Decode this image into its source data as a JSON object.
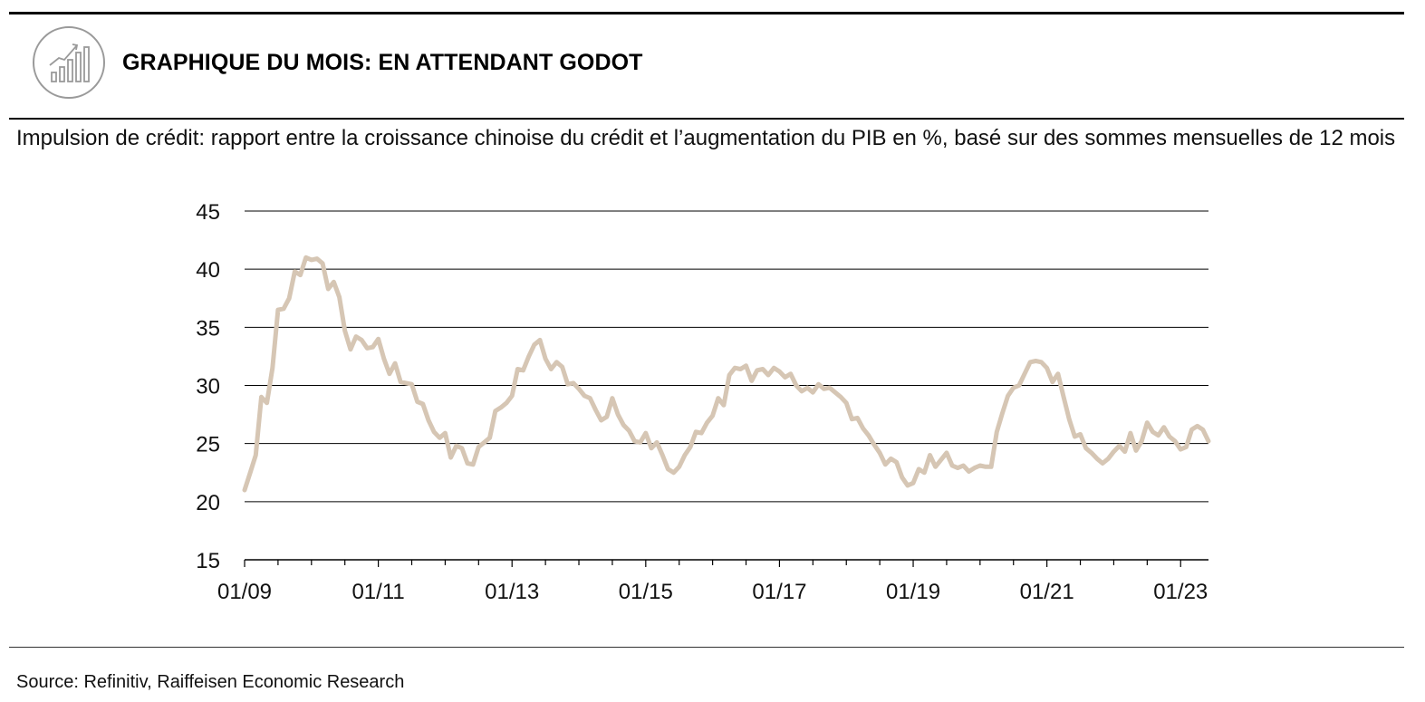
{
  "header": {
    "title": "GRAPHIQUE DU MOIS: EN ATTENDANT GODOT",
    "icon": "bar-chart-growth-icon"
  },
  "subtitle": "Impulsion de crédit: rapport entre la croissance chinoise du crédit et l’augmentation du PIB en %, basé sur des sommes mensuelles de 12 mois",
  "source": "Source: Refinitiv, Raiffeisen Economic Research",
  "colors": {
    "line": "#d6c6b4",
    "grid": "#000000",
    "icon": "#9a9a9a"
  },
  "chart_data": {
    "type": "line",
    "title": "",
    "xlabel": "",
    "ylabel": "",
    "ylim": [
      15,
      45
    ],
    "yticks": [
      15,
      20,
      25,
      30,
      35,
      40,
      45
    ],
    "xlim": [
      "01/09",
      "06/23"
    ],
    "xticks": [
      "01/09",
      "01/11",
      "01/13",
      "01/15",
      "01/17",
      "01/19",
      "01/21",
      "01/23"
    ],
    "grid": true,
    "legend": "none",
    "series": [
      {
        "name": "",
        "points": [
          [
            "01/09",
            21.0
          ],
          [
            "02/09",
            22.5
          ],
          [
            "03/09",
            24.0
          ],
          [
            "04/09",
            29.0
          ],
          [
            "05/09",
            28.5
          ],
          [
            "06/09",
            31.5
          ],
          [
            "07/09",
            36.5
          ],
          [
            "08/09",
            36.6
          ],
          [
            "09/09",
            37.5
          ],
          [
            "10/09",
            39.8
          ],
          [
            "11/09",
            39.5
          ],
          [
            "12/09",
            41.0
          ],
          [
            "01/10",
            40.8
          ],
          [
            "02/10",
            40.9
          ],
          [
            "03/10",
            40.5
          ],
          [
            "04/10",
            38.3
          ],
          [
            "05/10",
            38.9
          ],
          [
            "06/10",
            37.6
          ],
          [
            "07/10",
            34.7
          ],
          [
            "08/10",
            33.1
          ],
          [
            "09/10",
            34.2
          ],
          [
            "10/10",
            33.9
          ],
          [
            "11/10",
            33.2
          ],
          [
            "12/10",
            33.3
          ],
          [
            "01/11",
            34.0
          ],
          [
            "02/11",
            32.3
          ],
          [
            "03/11",
            31.0
          ],
          [
            "04/11",
            31.9
          ],
          [
            "05/11",
            30.3
          ],
          [
            "06/11",
            30.2
          ],
          [
            "07/11",
            30.1
          ],
          [
            "08/11",
            28.6
          ],
          [
            "09/11",
            28.4
          ],
          [
            "10/11",
            27.0
          ],
          [
            "11/11",
            26.0
          ],
          [
            "12/11",
            25.5
          ],
          [
            "01/12",
            25.9
          ],
          [
            "02/12",
            23.8
          ],
          [
            "03/12",
            24.8
          ],
          [
            "04/12",
            24.6
          ],
          [
            "05/12",
            23.3
          ],
          [
            "06/12",
            23.2
          ],
          [
            "07/12",
            24.7
          ],
          [
            "08/12",
            25.1
          ],
          [
            "09/12",
            25.5
          ],
          [
            "10/12",
            27.8
          ],
          [
            "11/12",
            28.1
          ],
          [
            "12/12",
            28.5
          ],
          [
            "01/13",
            29.1
          ],
          [
            "02/13",
            31.4
          ],
          [
            "03/13",
            31.3
          ],
          [
            "04/13",
            32.5
          ],
          [
            "05/13",
            33.5
          ],
          [
            "06/13",
            33.9
          ],
          [
            "07/13",
            32.3
          ],
          [
            "08/13",
            31.4
          ],
          [
            "09/13",
            32.0
          ],
          [
            "10/13",
            31.6
          ],
          [
            "11/13",
            30.1
          ],
          [
            "12/13",
            30.2
          ],
          [
            "01/14",
            29.7
          ],
          [
            "02/14",
            29.1
          ],
          [
            "03/14",
            28.9
          ],
          [
            "04/14",
            27.9
          ],
          [
            "05/14",
            27.0
          ],
          [
            "06/14",
            27.3
          ],
          [
            "07/14",
            28.9
          ],
          [
            "08/14",
            27.5
          ],
          [
            "09/14",
            26.6
          ],
          [
            "10/14",
            26.1
          ],
          [
            "11/14",
            25.2
          ],
          [
            "12/14",
            25.1
          ],
          [
            "01/15",
            25.9
          ],
          [
            "02/15",
            24.6
          ],
          [
            "03/15",
            25.1
          ],
          [
            "04/15",
            24.0
          ],
          [
            "05/15",
            22.8
          ],
          [
            "06/15",
            22.5
          ],
          [
            "07/15",
            23.0
          ],
          [
            "08/15",
            24.0
          ],
          [
            "09/15",
            24.7
          ],
          [
            "10/15",
            26.0
          ],
          [
            "11/15",
            25.9
          ],
          [
            "12/15",
            26.8
          ],
          [
            "01/16",
            27.4
          ],
          [
            "02/16",
            28.9
          ],
          [
            "03/16",
            28.3
          ],
          [
            "04/16",
            30.9
          ],
          [
            "05/16",
            31.5
          ],
          [
            "06/16",
            31.4
          ],
          [
            "07/16",
            31.7
          ],
          [
            "08/16",
            30.4
          ],
          [
            "09/16",
            31.3
          ],
          [
            "10/16",
            31.4
          ],
          [
            "11/16",
            30.9
          ],
          [
            "12/16",
            31.5
          ],
          [
            "01/17",
            31.2
          ],
          [
            "02/17",
            30.7
          ],
          [
            "03/17",
            31.0
          ],
          [
            "04/17",
            30.0
          ],
          [
            "05/17",
            29.5
          ],
          [
            "06/17",
            29.8
          ],
          [
            "07/17",
            29.4
          ],
          [
            "08/17",
            30.1
          ],
          [
            "09/17",
            29.7
          ],
          [
            "10/17",
            29.8
          ],
          [
            "11/17",
            29.4
          ],
          [
            "12/17",
            29.0
          ],
          [
            "01/18",
            28.5
          ],
          [
            "02/18",
            27.1
          ],
          [
            "03/18",
            27.2
          ],
          [
            "04/18",
            26.3
          ],
          [
            "05/18",
            25.7
          ],
          [
            "06/18",
            24.9
          ],
          [
            "07/18",
            24.2
          ],
          [
            "08/18",
            23.2
          ],
          [
            "09/18",
            23.7
          ],
          [
            "10/18",
            23.4
          ],
          [
            "11/18",
            22.1
          ],
          [
            "12/18",
            21.4
          ],
          [
            "01/19",
            21.6
          ],
          [
            "02/19",
            22.8
          ],
          [
            "03/19",
            22.5
          ],
          [
            "04/19",
            24.0
          ],
          [
            "05/19",
            23.0
          ],
          [
            "06/19",
            23.6
          ],
          [
            "07/19",
            24.2
          ],
          [
            "08/19",
            23.1
          ],
          [
            "09/19",
            22.9
          ],
          [
            "10/19",
            23.1
          ],
          [
            "11/19",
            22.6
          ],
          [
            "12/19",
            22.9
          ],
          [
            "01/20",
            23.1
          ],
          [
            "02/20",
            23.0
          ],
          [
            "03/20",
            23.0
          ],
          [
            "04/20",
            26.0
          ],
          [
            "05/20",
            27.6
          ],
          [
            "06/20",
            29.1
          ],
          [
            "07/20",
            29.8
          ],
          [
            "08/20",
            30.0
          ],
          [
            "09/20",
            31.0
          ],
          [
            "10/20",
            32.0
          ],
          [
            "11/20",
            32.1
          ],
          [
            "12/20",
            32.0
          ],
          [
            "01/21",
            31.5
          ],
          [
            "02/21",
            30.3
          ],
          [
            "03/21",
            31.0
          ],
          [
            "04/21",
            29.0
          ],
          [
            "05/21",
            27.1
          ],
          [
            "06/21",
            25.6
          ],
          [
            "07/21",
            25.8
          ],
          [
            "08/21",
            24.6
          ],
          [
            "09/21",
            24.2
          ],
          [
            "10/21",
            23.7
          ],
          [
            "11/21",
            23.3
          ],
          [
            "12/21",
            23.7
          ],
          [
            "01/22",
            24.3
          ],
          [
            "02/22",
            24.8
          ],
          [
            "03/22",
            24.3
          ],
          [
            "04/22",
            25.9
          ],
          [
            "05/22",
            24.4
          ],
          [
            "06/22",
            25.2
          ],
          [
            "07/22",
            26.8
          ],
          [
            "08/22",
            26.0
          ],
          [
            "09/22",
            25.7
          ],
          [
            "10/22",
            26.4
          ],
          [
            "11/22",
            25.6
          ],
          [
            "12/22",
            25.2
          ],
          [
            "01/23",
            24.5
          ],
          [
            "02/23",
            24.7
          ],
          [
            "03/23",
            26.2
          ],
          [
            "04/23",
            26.5
          ],
          [
            "05/23",
            26.2
          ],
          [
            "06/23",
            25.2
          ],
          [
            "07/23",
            25.2
          ]
        ]
      }
    ]
  }
}
